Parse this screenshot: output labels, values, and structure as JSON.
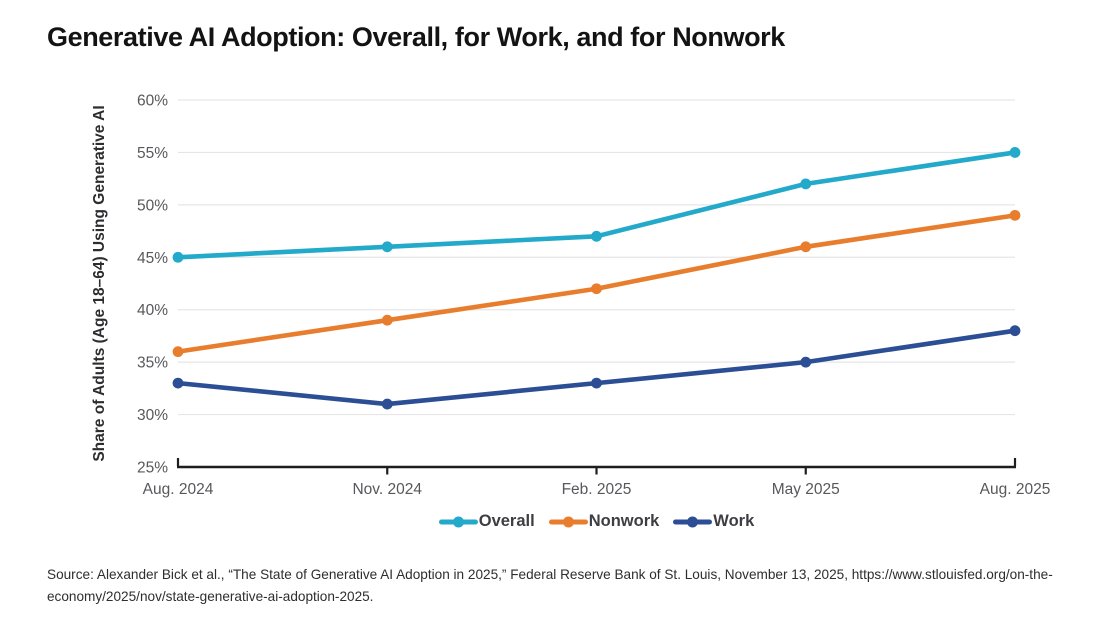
{
  "page": {
    "title": "Generative AI Adoption: Overall, for Work, and for Nonwork",
    "source": "Source: Alexander Bick et al., “The State of Generative AI Adoption in 2025,” Federal Reserve Bank of St. Louis, November 13, 2025, https://www.stlouisfed.org/on-the-economy/2025/nov/state-generative-ai-adoption-2025."
  },
  "chart_data": {
    "type": "line",
    "title": "Generative AI Adoption: Overall, for Work, and for Nonwork",
    "categories": [
      "Aug. 2024",
      "Nov. 2024",
      "Feb. 2025",
      "May 2025",
      "Aug. 2025"
    ],
    "series": [
      {
        "name": "Overall",
        "color": "#23A9C9",
        "values": [
          45,
          46,
          47,
          52,
          55
        ]
      },
      {
        "name": "Nonwork",
        "color": "#E87E2D",
        "values": [
          36,
          39,
          42,
          46,
          49
        ]
      },
      {
        "name": "Work",
        "color": "#2B4E94",
        "values": [
          33,
          31,
          33,
          35,
          38
        ]
      }
    ],
    "xlabel": "",
    "ylabel": "Share of Adults (Age 18–64) Using Generative AI",
    "ylim": [
      25,
      60
    ],
    "yticks": [
      25,
      30,
      35,
      40,
      45,
      50,
      55,
      60
    ],
    "ytick_suffix": "%",
    "grid": true,
    "legend_position": "bottom",
    "colors": {
      "axis": "#1E1E1E",
      "gridline": "#E6E6E8",
      "tick_label": "#58585C",
      "ylabel_text": "#2D2D30"
    }
  }
}
